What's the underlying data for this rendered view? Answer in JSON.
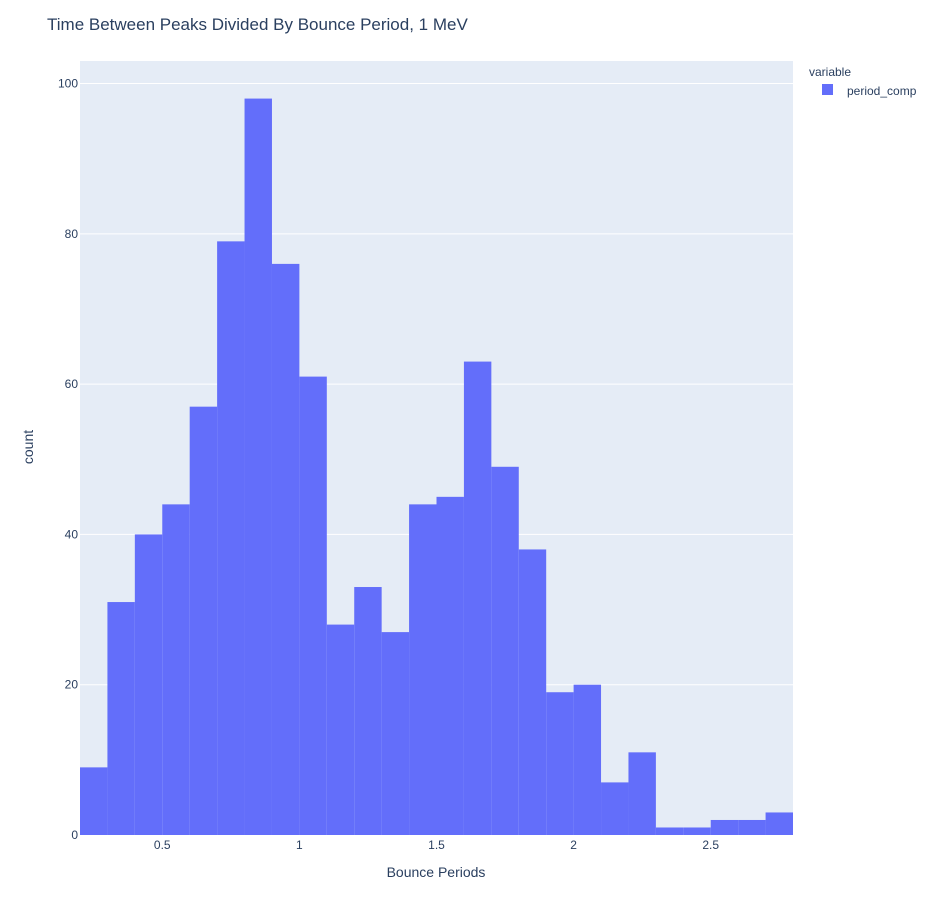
{
  "chart_data": {
    "type": "bar",
    "title": "Time Between Peaks Divided By Bounce Period, 1 MeV",
    "xlabel": "Bounce Periods",
    "ylabel": "count",
    "xlim": [
      0.2,
      2.8
    ],
    "ylim": [
      0,
      103
    ],
    "xticks": [
      0.5,
      1,
      1.5,
      2,
      2.5
    ],
    "xtick_labels": [
      "0.5",
      "1",
      "1.5",
      "2",
      "2.5"
    ],
    "yticks": [
      0,
      20,
      40,
      60,
      80,
      100
    ],
    "ytick_labels": [
      "0",
      "20",
      "40",
      "60",
      "80",
      "100"
    ],
    "bin_width": 0.1,
    "bin_starts": [
      0.2,
      0.3,
      0.4,
      0.5,
      0.6,
      0.7,
      0.8,
      0.9,
      1.0,
      1.1,
      1.2,
      1.3,
      1.4,
      1.5,
      1.6,
      1.7,
      1.8,
      1.9,
      2.0,
      2.1,
      2.2,
      2.3,
      2.4,
      2.5,
      2.6,
      2.7
    ],
    "values": [
      9,
      31,
      40,
      44,
      57,
      79,
      98,
      76,
      61,
      28,
      33,
      27,
      44,
      45,
      63,
      49,
      38,
      19,
      20,
      7,
      11,
      1,
      1,
      2,
      2,
      3
    ],
    "grid": true,
    "legend": {
      "title": "variable",
      "position": "top-right",
      "entries": [
        {
          "name": "period_comp",
          "color": "#636efa"
        }
      ]
    },
    "colors": {
      "bar": "#636efa",
      "plot_bg": "#e5ecf6",
      "grid": "#ffffff",
      "text": "#2a3f5f"
    }
  }
}
